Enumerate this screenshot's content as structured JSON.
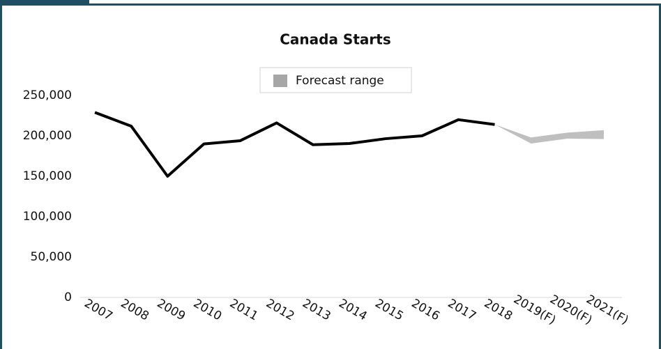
{
  "chart_data": {
    "type": "line",
    "title": "Canada Starts",
    "categories": [
      "2007",
      "2008",
      "2009",
      "2010",
      "2011",
      "2012",
      "2013",
      "2014",
      "2015",
      "2016",
      "2017",
      "2018",
      "2019(F)",
      "2020(F)",
      "2021(F)"
    ],
    "series": [
      {
        "color": "#000000",
        "values": [
          229000,
          212000,
          150000,
          190000,
          194000,
          216000,
          189000,
          190500,
          196500,
          200000,
          220000,
          214000,
          null,
          null,
          null
        ]
      }
    ],
    "range": {
      "name": "Forecast range",
      "color": "#bfbfbf",
      "legend_color": "#a6a6a6",
      "low": [
        null,
        null,
        null,
        null,
        null,
        null,
        null,
        null,
        null,
        null,
        null,
        214000,
        190500,
        196500,
        196000
      ],
      "high": [
        null,
        null,
        null,
        null,
        null,
        null,
        null,
        null,
        null,
        null,
        null,
        214000,
        198000,
        204000,
        207000
      ]
    },
    "ylim": [
      0,
      250000
    ],
    "yticks": [
      0,
      {
        "value": 50000,
        "label": "50,000"
      },
      {
        "value": 100000,
        "label": "100,000"
      },
      {
        "value": 150000,
        "label": "150,000"
      },
      {
        "value": 200000,
        "label": "200,000"
      },
      {
        "value": 250000,
        "label": "250,000"
      }
    ],
    "legend": "top"
  }
}
